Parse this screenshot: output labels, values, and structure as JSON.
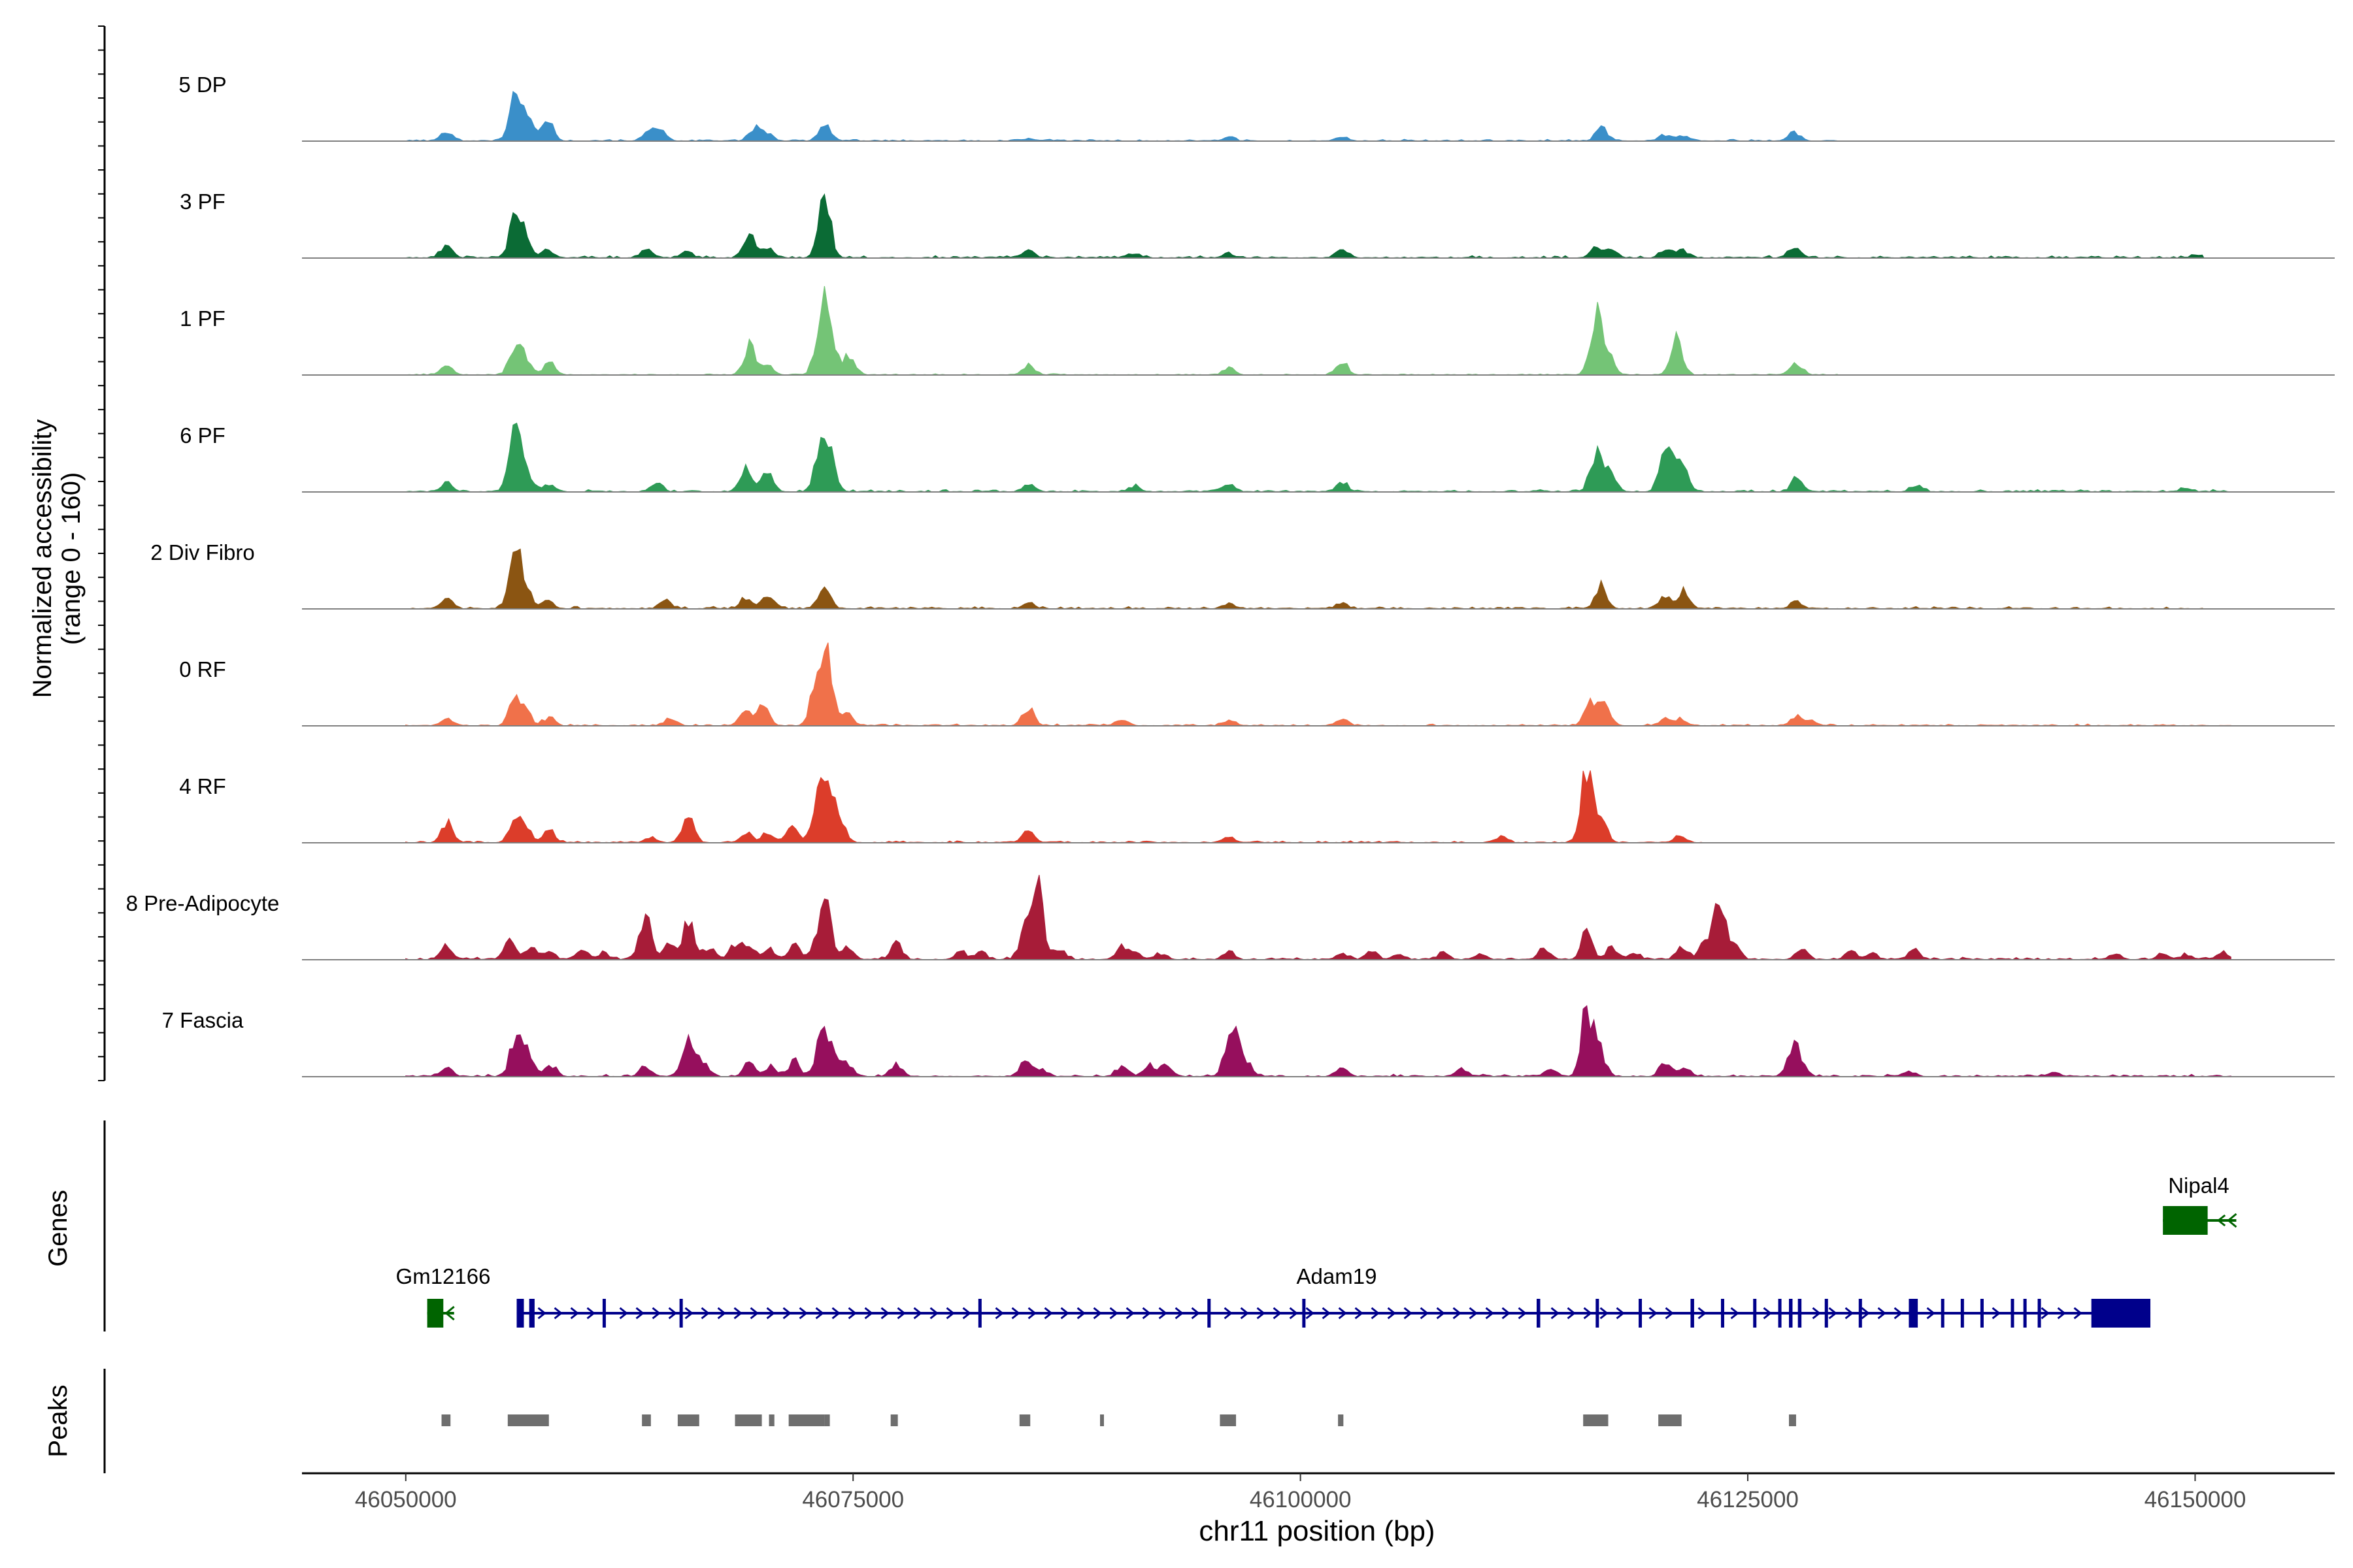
{
  "chart_data": {
    "type": "area",
    "y_axis_label_line1": "Normalized accessibility",
    "y_axis_label_line2": "(range 0 - 160)",
    "ylim": [
      0,
      160
    ],
    "x_axis_label": "chr11 position (bp)",
    "xlim": [
      46044200,
      46157800
    ],
    "x_ticks": [
      46050000,
      46075000,
      46100000,
      46125000,
      46150000
    ],
    "x_tick_labels": [
      "46050000",
      "46075000",
      "46100000",
      "46125000",
      "46150000"
    ],
    "tracks": [
      {
        "name": "5 DP",
        "color": "#3a8fc9",
        "peaks": [
          [
            46052300,
            18
          ],
          [
            46056100,
            86
          ],
          [
            46056700,
            56
          ],
          [
            46057900,
            46
          ],
          [
            46063600,
            18
          ],
          [
            46064200,
            19
          ],
          [
            46069500,
            24
          ],
          [
            46070200,
            15
          ],
          [
            46073400,
            32
          ],
          [
            46084800,
            5
          ],
          [
            46096000,
            6
          ],
          [
            46102300,
            8
          ],
          [
            46116800,
            27
          ],
          [
            46120400,
            12
          ],
          [
            46121400,
            9
          ],
          [
            46127600,
            18
          ]
        ],
        "range": [
          46050000,
          46130000
        ],
        "noise": 3
      },
      {
        "name": "3 PF",
        "color": "#0b6b35",
        "peaks": [
          [
            46052300,
            27
          ],
          [
            46056100,
            74
          ],
          [
            46056700,
            40
          ],
          [
            46058000,
            15
          ],
          [
            46063500,
            15
          ],
          [
            46065700,
            11
          ],
          [
            46069200,
            45
          ],
          [
            46070200,
            18
          ],
          [
            46073400,
            116
          ],
          [
            46084800,
            14
          ],
          [
            46090700,
            7
          ],
          [
            46096000,
            9
          ],
          [
            46102300,
            14
          ],
          [
            46116500,
            20
          ],
          [
            46117300,
            15
          ],
          [
            46120400,
            14
          ],
          [
            46121300,
            18
          ],
          [
            46127600,
            22
          ],
          [
            46150200,
            6
          ]
        ],
        "range": [
          46050000,
          46150500
        ],
        "noise": 4
      },
      {
        "name": "1 PF",
        "color": "#74c476",
        "peaks": [
          [
            46052300,
            17
          ],
          [
            46056100,
            56
          ],
          [
            46056600,
            35
          ],
          [
            46058000,
            25
          ],
          [
            46069200,
            55
          ],
          [
            46070200,
            22
          ],
          [
            46073200,
            110
          ],
          [
            46073700,
            92
          ],
          [
            46074800,
            40
          ],
          [
            46084800,
            18
          ],
          [
            46096000,
            12
          ],
          [
            46102300,
            28
          ],
          [
            46116500,
            112
          ],
          [
            46117200,
            40
          ],
          [
            46121000,
            80
          ],
          [
            46127700,
            25
          ]
        ],
        "range": [
          46050000,
          46130000
        ],
        "noise": 2
      },
      {
        "name": "6 PF",
        "color": "#2e9b56",
        "peaks": [
          [
            46052300,
            15
          ],
          [
            46056100,
            142
          ],
          [
            46056800,
            30
          ],
          [
            46058000,
            15
          ],
          [
            46064000,
            14
          ],
          [
            46069000,
            40
          ],
          [
            46070200,
            40
          ],
          [
            46073200,
            95
          ],
          [
            46073700,
            60
          ],
          [
            46084800,
            15
          ],
          [
            46090700,
            10
          ],
          [
            46096000,
            13
          ],
          [
            46102300,
            18
          ],
          [
            46116500,
            70
          ],
          [
            46117300,
            35
          ],
          [
            46120300,
            55
          ],
          [
            46120900,
            50
          ],
          [
            46121400,
            40
          ],
          [
            46127700,
            22
          ],
          [
            46134400,
            10
          ],
          [
            46149500,
            6
          ]
        ],
        "range": [
          46050000,
          46152000
        ],
        "noise": 4
      },
      {
        "name": "2 Div Fibro",
        "color": "#8b5512",
        "peaks": [
          [
            46052300,
            17
          ],
          [
            46056100,
            112
          ],
          [
            46056700,
            38
          ],
          [
            46058000,
            15
          ],
          [
            46064500,
            15
          ],
          [
            46069000,
            22
          ],
          [
            46070200,
            24
          ],
          [
            46073400,
            44
          ],
          [
            46084800,
            9
          ],
          [
            46096000,
            10
          ],
          [
            46102300,
            10
          ],
          [
            46116800,
            42
          ],
          [
            46120400,
            22
          ],
          [
            46121400,
            34
          ],
          [
            46127700,
            16
          ]
        ],
        "range": [
          46050000,
          46150500
        ],
        "noise": 4
      },
      {
        "name": "0 RF",
        "color": "#f0714a",
        "peaks": [
          [
            46052300,
            15
          ],
          [
            46056100,
            50
          ],
          [
            46056700,
            27
          ],
          [
            46058000,
            15
          ],
          [
            46064800,
            14
          ],
          [
            46069000,
            33
          ],
          [
            46070000,
            38
          ],
          [
            46073000,
            96
          ],
          [
            46073600,
            120
          ],
          [
            46074700,
            20
          ],
          [
            46084800,
            36
          ],
          [
            46090000,
            12
          ],
          [
            46096000,
            10
          ],
          [
            46102300,
            12
          ],
          [
            46116200,
            40
          ],
          [
            46117000,
            42
          ],
          [
            46120400,
            15
          ],
          [
            46121300,
            14
          ],
          [
            46127700,
            16
          ],
          [
            46128500,
            10
          ]
        ],
        "range": [
          46050000,
          46152000
        ],
        "noise": 3
      },
      {
        "name": "4 RF",
        "color": "#dc3d2a",
        "peaks": [
          [
            46052300,
            38
          ],
          [
            46056100,
            40
          ],
          [
            46056700,
            28
          ],
          [
            46058000,
            24
          ],
          [
            46063700,
            12
          ],
          [
            46065800,
            45
          ],
          [
            46069000,
            20
          ],
          [
            46070200,
            18
          ],
          [
            46071600,
            26
          ],
          [
            46073000,
            70
          ],
          [
            46073500,
            100
          ],
          [
            46074200,
            56
          ],
          [
            46084800,
            24
          ],
          [
            46096000,
            13
          ],
          [
            46111200,
            12
          ],
          [
            46116000,
            152
          ],
          [
            46116800,
            46
          ],
          [
            46121200,
            12
          ]
        ],
        "range": [
          46050000,
          46122500
        ],
        "noise": 3
      },
      {
        "name": "8 Pre-Adipocyte",
        "color": "#a71c38",
        "peaks": [
          [
            46052300,
            28
          ],
          [
            46055800,
            36
          ],
          [
            46057000,
            28
          ],
          [
            46058000,
            18
          ],
          [
            46059800,
            15
          ],
          [
            46061000,
            12
          ],
          [
            46063400,
            84
          ],
          [
            46064700,
            28
          ],
          [
            46065800,
            70
          ],
          [
            46067000,
            24
          ],
          [
            46068400,
            28
          ],
          [
            46069200,
            30
          ],
          [
            46070300,
            22
          ],
          [
            46071700,
            28
          ],
          [
            46073000,
            30
          ],
          [
            46073500,
            88
          ],
          [
            46074700,
            24
          ],
          [
            46077400,
            30
          ],
          [
            46081000,
            16
          ],
          [
            46082100,
            14
          ],
          [
            46084600,
            54
          ],
          [
            46085300,
            130
          ],
          [
            46086500,
            20
          ],
          [
            46090000,
            22
          ],
          [
            46090800,
            15
          ],
          [
            46092200,
            12
          ],
          [
            46096000,
            14
          ],
          [
            46102300,
            12
          ],
          [
            46104000,
            15
          ],
          [
            46105500,
            10
          ],
          [
            46108000,
            12
          ],
          [
            46110000,
            10
          ],
          [
            46113600,
            20
          ],
          [
            46116000,
            48
          ],
          [
            46117400,
            22
          ],
          [
            46118600,
            14
          ],
          [
            46121300,
            24
          ],
          [
            46122600,
            30
          ],
          [
            46123400,
            130
          ],
          [
            46124300,
            22
          ],
          [
            46128000,
            20
          ],
          [
            46130800,
            16
          ],
          [
            46132000,
            10
          ],
          [
            46134300,
            20
          ],
          [
            46145500,
            10
          ],
          [
            46148200,
            10
          ],
          [
            46149500,
            10
          ],
          [
            46151500,
            12
          ]
        ],
        "range": [
          46050000,
          46152000
        ],
        "noise": 4
      },
      {
        "name": "7 Fascia",
        "color": "#960f5d",
        "peaks": [
          [
            46052300,
            18
          ],
          [
            46056200,
            88
          ],
          [
            46056900,
            42
          ],
          [
            46058100,
            22
          ],
          [
            46063400,
            18
          ],
          [
            46065800,
            68
          ],
          [
            46066600,
            26
          ],
          [
            46069200,
            24
          ],
          [
            46070400,
            18
          ],
          [
            46071700,
            30
          ],
          [
            46073300,
            86
          ],
          [
            46073900,
            40
          ],
          [
            46074700,
            22
          ],
          [
            46077400,
            22
          ],
          [
            46084600,
            26
          ],
          [
            46085400,
            14
          ],
          [
            46090000,
            20
          ],
          [
            46091600,
            20
          ],
          [
            46092500,
            20
          ],
          [
            46096000,
            45
          ],
          [
            46096400,
            70
          ],
          [
            46097100,
            20
          ],
          [
            46102300,
            14
          ],
          [
            46109000,
            14
          ],
          [
            46114000,
            14
          ],
          [
            46116000,
            130
          ],
          [
            46116700,
            52
          ],
          [
            46120400,
            25
          ],
          [
            46121400,
            16
          ],
          [
            46127500,
            54
          ],
          [
            46128000,
            20
          ],
          [
            46134000,
            10
          ],
          [
            46142000,
            8
          ]
        ],
        "range": [
          46050000,
          46152000
        ],
        "noise": 4
      }
    ],
    "genes_label": "Genes",
    "genes": [
      {
        "name": "Adam19",
        "color": "#00008b",
        "strand": "+",
        "start": 46056200,
        "end": 46147500,
        "exons": [
          [
            46056200,
            46056600
          ],
          [
            46056900,
            46057200
          ],
          [
            46061000,
            46061100
          ],
          [
            46065300,
            46065400
          ],
          [
            46082000,
            46082100
          ],
          [
            46094800,
            46094900
          ],
          [
            46100100,
            46100200
          ],
          [
            46113200,
            46113400
          ],
          [
            46116500,
            46116600
          ],
          [
            46118900,
            46119000
          ],
          [
            46121800,
            46122000
          ],
          [
            46123500,
            46123600
          ],
          [
            46125300,
            46125400
          ],
          [
            46126700,
            46126800
          ],
          [
            46127300,
            46127500
          ],
          [
            46127800,
            46128000
          ],
          [
            46129300,
            46129400
          ],
          [
            46131200,
            46131300
          ],
          [
            46134000,
            46134500
          ],
          [
            46135800,
            46135900
          ],
          [
            46136900,
            46137000
          ],
          [
            46138000,
            46138100
          ],
          [
            46139700,
            46139800
          ],
          [
            46140400,
            46140500
          ],
          [
            46141200,
            46141300
          ],
          [
            46144200,
            46147500
          ]
        ],
        "thin_exons": [
          [
            46056200,
            46056600
          ],
          [
            46134000,
            46134300
          ]
        ],
        "utr_end": [
          46144200,
          46147500
        ]
      },
      {
        "name": "Gm12166",
        "color": "#006400",
        "strand": "-",
        "start": 46051200,
        "end": 46052700,
        "exons": [
          [
            46051200,
            46052100
          ]
        ]
      },
      {
        "name": "Nipal4",
        "color": "#006400",
        "strand": "-",
        "start": 46148200,
        "end": 46152300,
        "exons": [
          [
            46148200,
            46150700
          ]
        ]
      }
    ],
    "peaks_label": "Peaks",
    "peak_regions": [
      [
        46052000,
        46052500
      ],
      [
        46055700,
        46058000
      ],
      [
        46063200,
        46063700
      ],
      [
        46065200,
        46066400
      ],
      [
        46068400,
        46069900
      ],
      [
        46070300,
        46070600
      ],
      [
        46071400,
        46073400
      ],
      [
        46073400,
        46073700
      ],
      [
        46077100,
        46077500
      ],
      [
        46084300,
        46084900
      ],
      [
        46088800,
        46089000
      ],
      [
        46095500,
        46096400
      ],
      [
        46102100,
        46102400
      ],
      [
        46115800,
        46117200
      ],
      [
        46120000,
        46121300
      ],
      [
        46127300,
        46127700
      ]
    ]
  }
}
